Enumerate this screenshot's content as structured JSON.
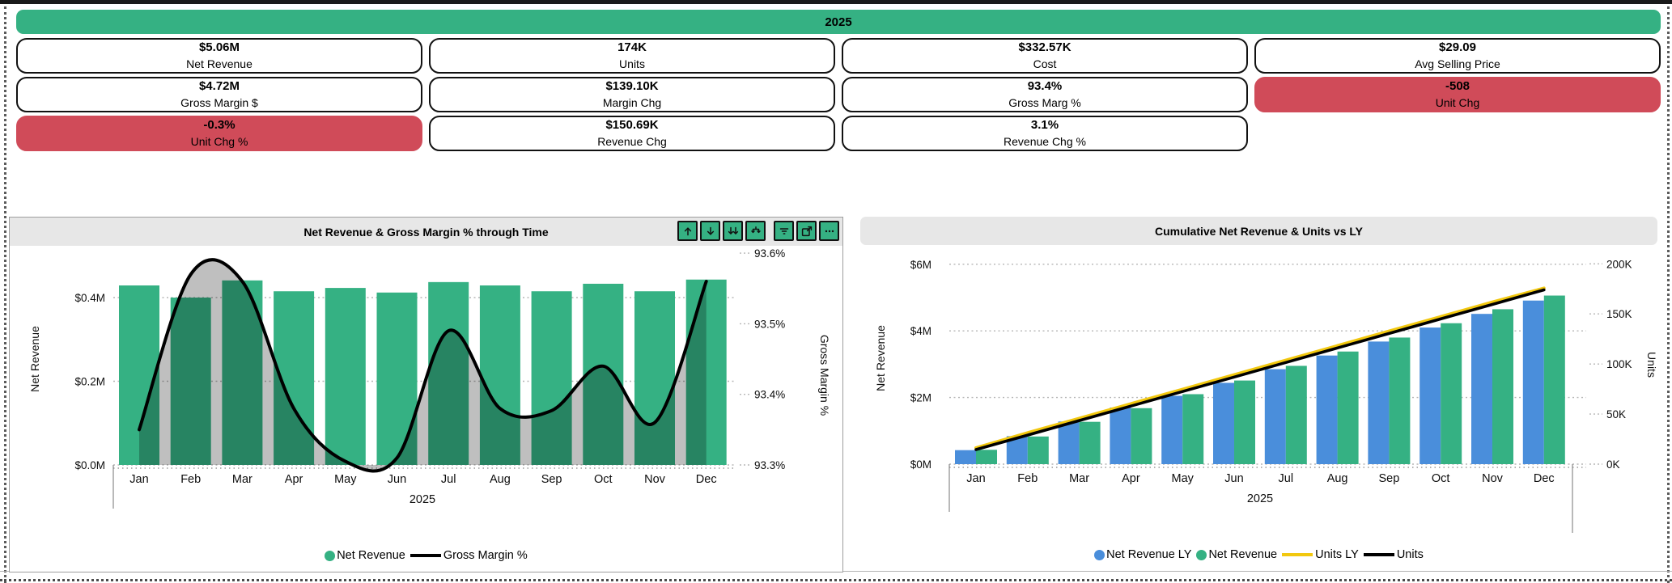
{
  "banner": {
    "year": "2025"
  },
  "colors": {
    "green": "#35b183",
    "red": "#d04b59",
    "blue": "#4a8edb",
    "yellow": "#f2c80f",
    "black": "#000000",
    "header_bg": "#e7e7e7",
    "panel_border": "#9e9e9e",
    "grid": "#b5b5b5",
    "area_overlay": "rgba(0,0,0,0.25)"
  },
  "kpis": {
    "rows": [
      [
        {
          "value": "$5.06M",
          "label": "Net Revenue",
          "variant": "white"
        },
        {
          "value": "174K",
          "label": "Units",
          "variant": "white"
        },
        {
          "value": "$332.57K",
          "label": "Cost",
          "variant": "white"
        },
        {
          "value": "$29.09",
          "label": "Avg Selling Price",
          "variant": "white"
        }
      ],
      [
        {
          "value": "$4.72M",
          "label": "Gross Margin $",
          "variant": "white"
        },
        {
          "value": "$139.10K",
          "label": "Margin Chg",
          "variant": "white"
        },
        {
          "value": "93.4%",
          "label": "Gross Marg %",
          "variant": "white"
        },
        {
          "value": "-508",
          "label": "Unit Chg",
          "variant": "red"
        }
      ],
      [
        {
          "value": "-0.3%",
          "label": "Unit Chg %",
          "variant": "red"
        },
        {
          "value": "$150.69K",
          "label": "Revenue Chg",
          "variant": "white"
        },
        {
          "value": "3.1%",
          "label": "Revenue Chg %",
          "variant": "white"
        },
        null
      ]
    ]
  },
  "charts": {
    "left": {
      "title": "Net Revenue & Gross Margin % through Time",
      "toolbar": [
        {
          "name": "drill-up"
        },
        {
          "name": "drill-down"
        },
        {
          "name": "drill-next-level"
        },
        {
          "name": "expand-all"
        },
        {
          "name": "filter"
        },
        {
          "name": "focus-mode"
        },
        {
          "name": "more-options"
        }
      ],
      "legend": [
        {
          "label": "Net Revenue",
          "marker": "dot",
          "color_key": "green"
        },
        {
          "label": "Gross Margin %",
          "marker": "line",
          "color_key": "black"
        }
      ]
    },
    "right": {
      "title": "Cumulative Net Revenue & Units vs LY",
      "legend": [
        {
          "label": "Net Revenue LY",
          "marker": "dot",
          "color_key": "blue"
        },
        {
          "label": "Net Revenue",
          "marker": "dot",
          "color_key": "green"
        },
        {
          "label": "Units LY",
          "marker": "line",
          "color_key": "yellow"
        },
        {
          "label": "Units",
          "marker": "line",
          "color_key": "black"
        }
      ]
    }
  },
  "chart_data": [
    {
      "id": "left",
      "type": "bar",
      "title": "Net Revenue & Gross Margin % through Time",
      "categories": [
        "Jan",
        "Feb",
        "Mar",
        "Apr",
        "May",
        "Jun",
        "Jul",
        "Aug",
        "Sep",
        "Oct",
        "Nov",
        "Dec"
      ],
      "x_group_label": "2025",
      "ylabel_left": "Net Revenue",
      "ylabel_right": "Gross Margin %",
      "y_left": {
        "tick_labels": [
          "$0.0M",
          "$0.2M",
          "$0.4M"
        ],
        "tick_values": [
          0,
          0.2,
          0.4
        ],
        "min": 0,
        "max": 0.47
      },
      "y_right": {
        "tick_labels": [
          "93.3%",
          "93.4%",
          "93.5%",
          "93.6%"
        ],
        "tick_values": [
          93.3,
          93.4,
          93.5,
          93.6
        ],
        "min": 93.3,
        "max": 93.6
      },
      "grid": "dotted",
      "legend_position": "bottom",
      "series": [
        {
          "name": "Net Revenue",
          "kind": "bar",
          "axis": "left",
          "color_key": "green",
          "values": [
            0.429,
            0.4,
            0.441,
            0.415,
            0.423,
            0.412,
            0.437,
            0.429,
            0.415,
            0.433,
            0.415,
            0.443
          ]
        },
        {
          "name": "Gross Margin %",
          "kind": "line-area",
          "axis": "right",
          "color_key": "black",
          "values": [
            93.35,
            93.57,
            93.56,
            93.38,
            93.305,
            93.31,
            93.49,
            93.38,
            93.377,
            93.44,
            93.36,
            93.56
          ]
        }
      ]
    },
    {
      "id": "right",
      "type": "bar",
      "title": "Cumulative Net Revenue & Units vs LY",
      "categories": [
        "Jan",
        "Feb",
        "Mar",
        "Apr",
        "May",
        "Jun",
        "Jul",
        "Aug",
        "Sep",
        "Oct",
        "Nov",
        "Dec"
      ],
      "x_group_label": "2025",
      "ylabel_left": "Net Revenue",
      "ylabel_right": "Units",
      "y_left": {
        "tick_labels": [
          "$0M",
          "$2M",
          "$4M",
          "$6M"
        ],
        "tick_values": [
          0,
          2,
          4,
          6
        ],
        "min": 0,
        "max": 6.6
      },
      "y_right": {
        "tick_labels": [
          "0K",
          "50K",
          "100K",
          "150K",
          "200K"
        ],
        "tick_values": [
          0,
          50,
          100,
          150,
          200
        ],
        "min": 0,
        "max": 220
      },
      "grid": "dotted",
      "legend_position": "bottom",
      "series": [
        {
          "name": "Net Revenue LY",
          "kind": "bar",
          "axis": "left",
          "color_key": "blue",
          "values": [
            0.42,
            0.84,
            1.28,
            1.7,
            2.05,
            2.44,
            2.85,
            3.26,
            3.68,
            4.1,
            4.51,
            4.91
          ]
        },
        {
          "name": "Net Revenue",
          "kind": "bar",
          "axis": "left",
          "color_key": "green",
          "values": [
            0.43,
            0.83,
            1.27,
            1.68,
            2.1,
            2.51,
            2.95,
            3.38,
            3.8,
            4.23,
            4.65,
            5.06
          ]
        },
        {
          "name": "Units LY",
          "kind": "line",
          "axis": "right",
          "color_key": "yellow",
          "values": [
            15.0,
            30.0,
            44.5,
            59.0,
            73.5,
            88.0,
            102.5,
            117.0,
            131.5,
            146.0,
            160.5,
            174.5
          ]
        },
        {
          "name": "Units",
          "kind": "line",
          "axis": "right",
          "color_key": "black",
          "values": [
            14.5,
            29.0,
            43.5,
            58.0,
            72.5,
            87.0,
            101.5,
            116.0,
            130.5,
            145.0,
            159.5,
            174.0
          ]
        }
      ]
    }
  ]
}
